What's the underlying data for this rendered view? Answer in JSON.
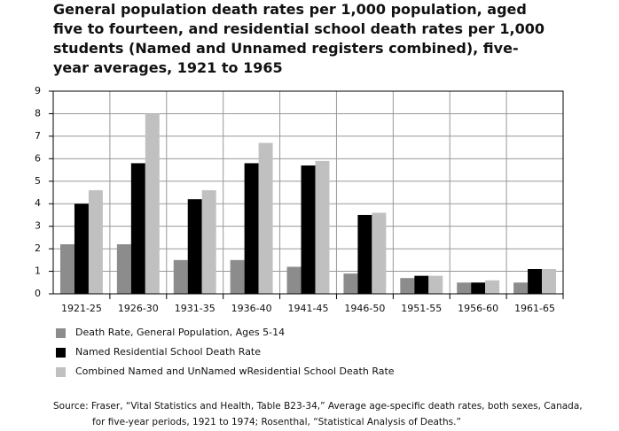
{
  "chart_data": {
    "type": "bar",
    "title": "General population death rates per 1,000 population, aged five to fourteen, and residential school death rates per 1,000 students (Named and Unnamed registers combined), five-year averages, 1921 to 1965",
    "categories": [
      "1921-25",
      "1926-30",
      "1931-35",
      "1936-40",
      "1941-45",
      "1946-50",
      "1951-55",
      "1956-60",
      "1961-65"
    ],
    "series": [
      {
        "name": "Death Rate, General Population, Ages 5-14",
        "color": "#8c8c8c",
        "values": [
          2.2,
          2.2,
          1.5,
          1.5,
          1.2,
          0.9,
          0.7,
          0.5,
          0.5
        ]
      },
      {
        "name": "Named Residential School Death Rate",
        "color": "#000000",
        "values": [
          4.0,
          5.8,
          4.2,
          5.8,
          5.7,
          3.5,
          0.8,
          0.5,
          1.1
        ]
      },
      {
        "name": "Combined Named and UnNamed wResidential School Death Rate",
        "color": "#c0c0c0",
        "values": [
          4.6,
          8.0,
          4.6,
          6.7,
          5.9,
          3.6,
          0.8,
          0.6,
          1.1
        ]
      }
    ],
    "ylim": [
      0,
      9
    ],
    "yticks": [
      0,
      1,
      2,
      3,
      4,
      5,
      6,
      7,
      8,
      9
    ],
    "grid": true,
    "source": "Source: Fraser, “Vital Statistics and Health, Table B23-34,” Average age-specific death rates, both sexes, Canada, for five-year periods, 1921 to 1974; Rosenthal, “Statistical Analysis of Deaths.”"
  }
}
